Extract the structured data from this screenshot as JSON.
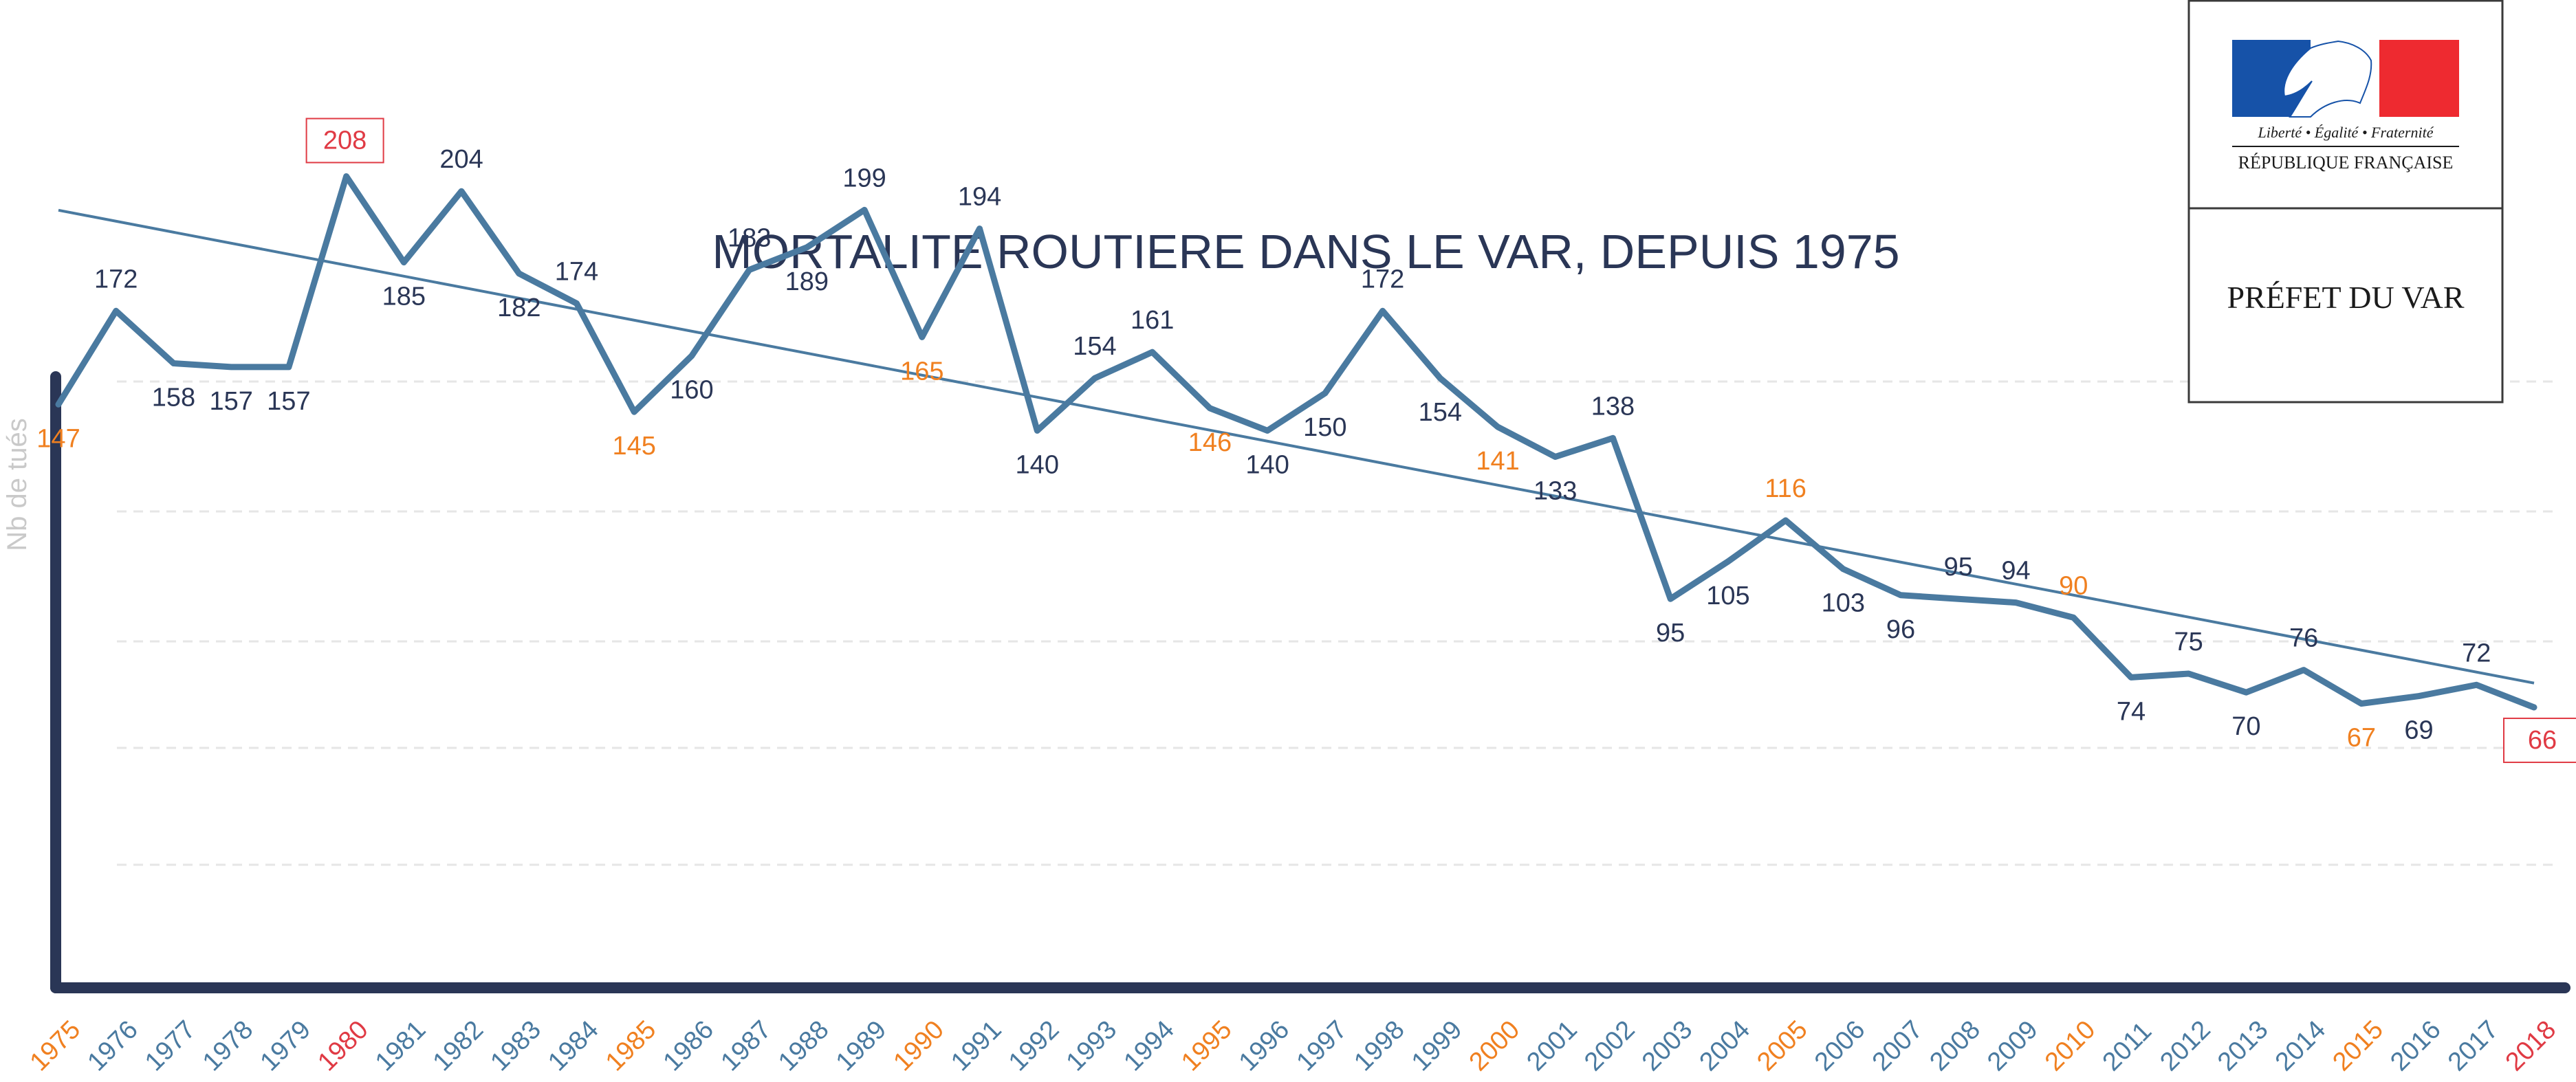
{
  "colors": {
    "navy": "#2a3656",
    "line": "#4a7aa0",
    "orange": "#f08020",
    "red": "#e03a44",
    "axis": "#2a3656",
    "grid": "#e6e6e6",
    "flag_blue": "#1652a8",
    "flag_red": "#ee2a30"
  },
  "logo": {
    "motto": "Liberté • Égalité • Fraternité",
    "republic": "RÉPUBLIQUE FRANÇAISE",
    "prefet": "PRÉFET DU VAR",
    "icon": "marianne-flag-icon"
  },
  "chart_data": {
    "type": "line",
    "title": "MORTALITE ROUTIERE DANS LE VAR, DEPUIS 1975",
    "xlabel": "",
    "ylabel": "Nb de tués",
    "grid": true,
    "trendline": true,
    "x": [
      "1975",
      "1976",
      "1977",
      "1978",
      "1979",
      "1980",
      "1981",
      "1982",
      "1983",
      "1984",
      "1985",
      "1986",
      "1987",
      "1988",
      "1989",
      "1990",
      "1991",
      "1992",
      "1993",
      "1994",
      "1995",
      "1996",
      "1997",
      "1998",
      "1999",
      "2000",
      "2001",
      "2002",
      "2003",
      "2004",
      "2005",
      "2006",
      "2007",
      "2008",
      "2009",
      "2010",
      "2011",
      "2012",
      "2013",
      "2014",
      "2015",
      "2016",
      "2017",
      "2018"
    ],
    "series": [
      {
        "values": [
          147,
          172,
          158,
          157,
          157,
          208,
          185,
          204,
          182,
          174,
          145,
          160,
          183,
          189,
          199,
          165,
          194,
          140,
          154,
          161,
          146,
          140,
          150,
          172,
          154,
          141,
          133,
          138,
          95,
          105,
          116,
          103,
          96,
          95,
          94,
          90,
          74,
          75,
          70,
          76,
          67,
          69,
          72,
          66
        ]
      }
    ],
    "highlight": {
      "orange_years": [
        "1975",
        "1985",
        "1990",
        "1995",
        "2000",
        "2005",
        "2010",
        "2015"
      ],
      "boxed_years": [
        "1980",
        "2018"
      ]
    }
  }
}
